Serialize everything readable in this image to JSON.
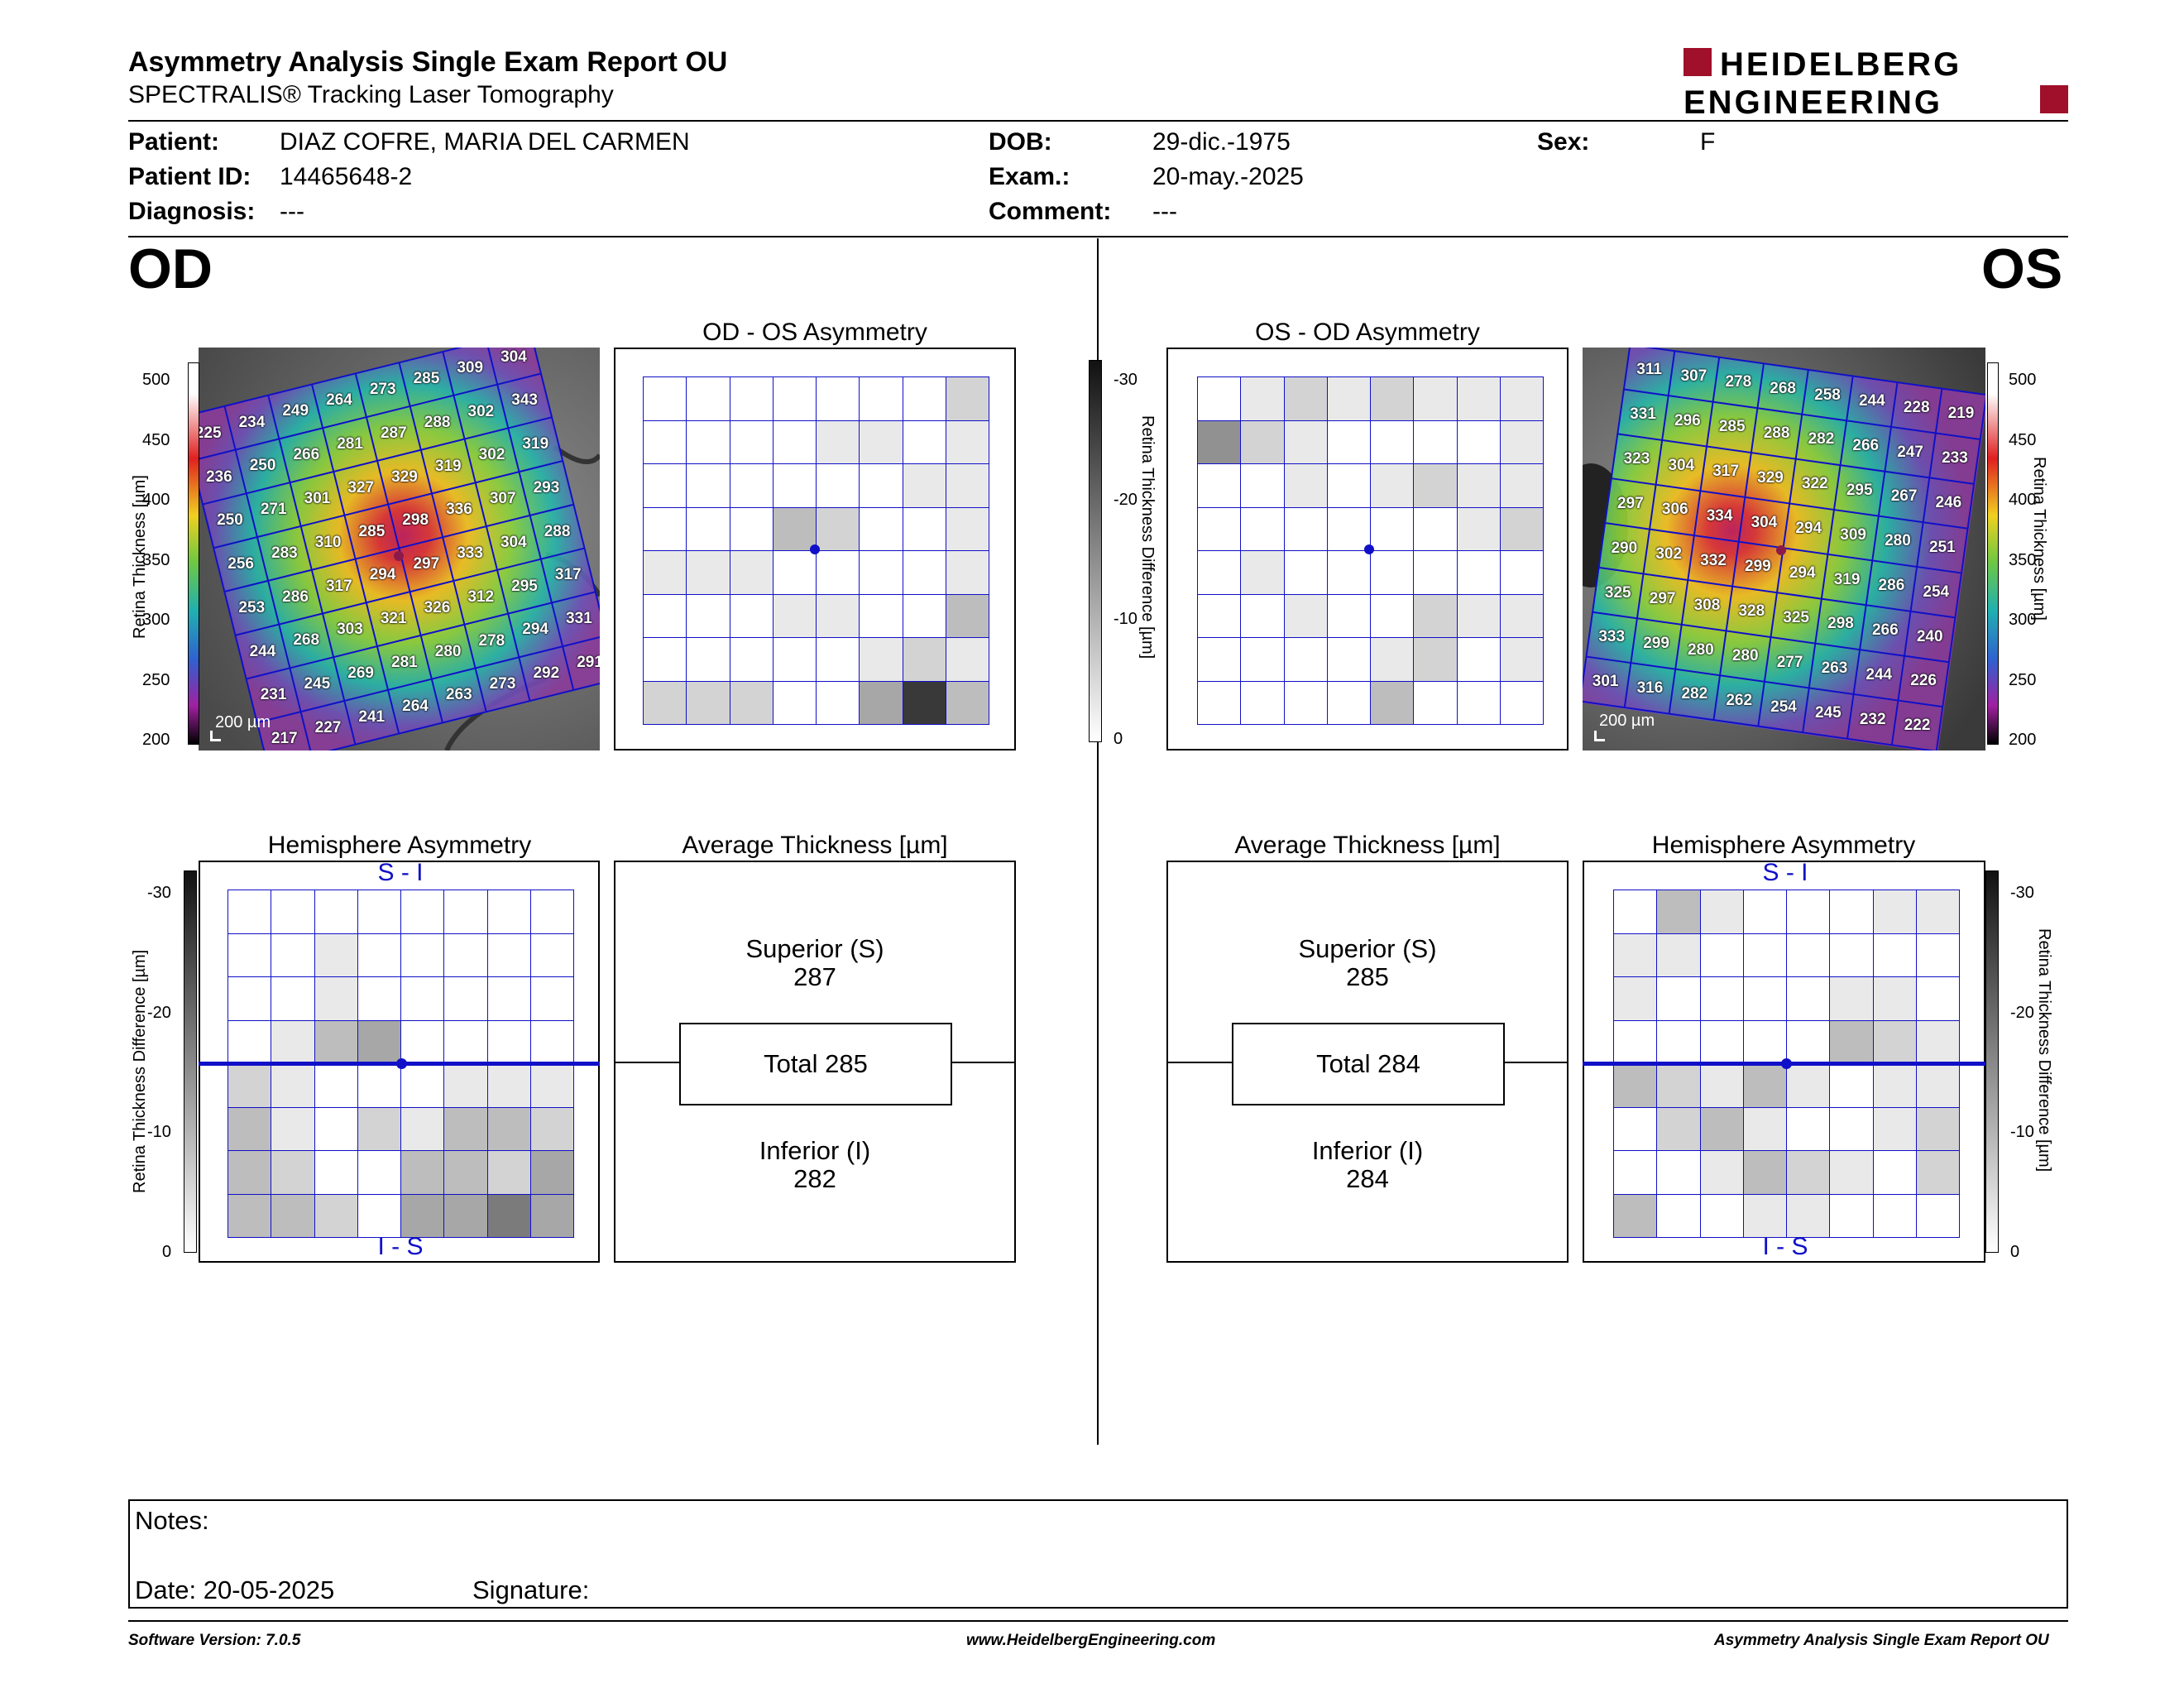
{
  "header": {
    "title": "Asymmetry Analysis Single Exam Report OU",
    "subtitle": "SPECTRALIS® Tracking Laser Tomography",
    "logo_line1": "HEIDELBERG",
    "logo_line2": "ENGINEERING"
  },
  "patient": {
    "patient_label": "Patient:",
    "patient_value": "DIAZ COFRE, MARIA DEL CARMEN",
    "dob_label": "DOB:",
    "dob_value": "29-dic.-1975",
    "sex_label": "Sex:",
    "sex_value": "F",
    "id_label": "Patient ID:",
    "id_value": "14465648-2",
    "exam_label": "Exam.:",
    "exam_value": "20-may.-2025",
    "diag_label": "Diagnosis:",
    "diag_value": "---",
    "comment_label": "Comment:",
    "comment_value": "---"
  },
  "od": {
    "eye_label": "OD",
    "asym_title": "OD - OS Asymmetry",
    "hemi_title": "Hemisphere Asymmetry",
    "avg_title": "Average Thickness [µm]",
    "superior_label": "Superior (S)",
    "superior_value": "287",
    "total_label": "Total 285",
    "inferior_label": "Inferior (I)",
    "inferior_value": "282",
    "scale_bar": "200 µm",
    "thickness_grid": [
      [
        "225",
        "234",
        "249",
        "264",
        "273",
        "285",
        "309",
        "304"
      ],
      [
        "236",
        "250",
        "266",
        "281",
        "287",
        "288",
        "302",
        "343"
      ],
      [
        "250",
        "271",
        "301",
        "327",
        "329",
        "319",
        "302",
        "319"
      ],
      [
        "256",
        "283",
        "310",
        "285",
        "298",
        "336",
        "307",
        "293"
      ],
      [
        "253",
        "286",
        "317",
        "294",
        "297",
        "333",
        "304",
        "288"
      ],
      [
        "244",
        "268",
        "303",
        "321",
        "326",
        "312",
        "295",
        "317"
      ],
      [
        "231",
        "245",
        "269",
        "281",
        "280",
        "278",
        "294",
        "331"
      ],
      [
        "217",
        "227",
        "241",
        "264",
        "263",
        "273",
        "292",
        "291"
      ]
    ],
    "asym_grid": [
      [
        0,
        0,
        0,
        0,
        0,
        0,
        0,
        2
      ],
      [
        0,
        0,
        0,
        0,
        1,
        1,
        0,
        1
      ],
      [
        0,
        0,
        0,
        0,
        0,
        0,
        1,
        1
      ],
      [
        0,
        0,
        0,
        3,
        2,
        0,
        0,
        1
      ],
      [
        1,
        1,
        1,
        0,
        0,
        0,
        0,
        1
      ],
      [
        0,
        0,
        0,
        1,
        1,
        0,
        0,
        3
      ],
      [
        0,
        0,
        0,
        0,
        0,
        1,
        2,
        1
      ],
      [
        2,
        2,
        2,
        0,
        0,
        4,
        9,
        3
      ]
    ],
    "hemi_grid": [
      [
        0,
        0,
        0,
        0,
        0,
        0,
        0,
        0
      ],
      [
        0,
        0,
        1,
        0,
        0,
        0,
        0,
        0
      ],
      [
        0,
        0,
        1,
        0,
        0,
        0,
        0,
        0
      ],
      [
        0,
        1,
        3,
        4,
        0,
        0,
        0,
        0
      ],
      [
        2,
        1,
        0,
        0,
        0,
        1,
        1,
        1
      ],
      [
        3,
        1,
        0,
        2,
        1,
        3,
        3,
        2
      ],
      [
        3,
        2,
        0,
        0,
        3,
        3,
        2,
        4
      ],
      [
        3,
        3,
        2,
        0,
        4,
        4,
        6,
        4
      ]
    ]
  },
  "os": {
    "eye_label": "OS",
    "asym_title": "OS - OD Asymmetry",
    "hemi_title": "Hemisphere Asymmetry",
    "avg_title": "Average Thickness [µm]",
    "superior_label": "Superior (S)",
    "superior_value": "285",
    "total_label": "Total 284",
    "inferior_label": "Inferior (I)",
    "inferior_value": "284",
    "scale_bar": "200 µm",
    "thickness_grid": [
      [
        "311",
        "307",
        "278",
        "268",
        "258",
        "244",
        "228",
        "219"
      ],
      [
        "331",
        "296",
        "285",
        "288",
        "282",
        "266",
        "247",
        "233"
      ],
      [
        "323",
        "304",
        "317",
        "329",
        "322",
        "295",
        "267",
        "246"
      ],
      [
        "297",
        "306",
        "334",
        "304",
        "294",
        "309",
        "280",
        "251"
      ],
      [
        "290",
        "302",
        "332",
        "299",
        "294",
        "319",
        "286",
        "254"
      ],
      [
        "325",
        "297",
        "308",
        "328",
        "325",
        "298",
        "266",
        "240"
      ],
      [
        "333",
        "299",
        "280",
        "280",
        "277",
        "263",
        "244",
        "226"
      ],
      [
        "301",
        "316",
        "282",
        "262",
        "254",
        "245",
        "232",
        "222"
      ]
    ],
    "asym_grid": [
      [
        0,
        1,
        2,
        1,
        2,
        1,
        1,
        1
      ],
      [
        5,
        2,
        1,
        0,
        0,
        0,
        0,
        1
      ],
      [
        0,
        0,
        1,
        0,
        1,
        2,
        1,
        1
      ],
      [
        0,
        0,
        0,
        0,
        0,
        0,
        1,
        2
      ],
      [
        0,
        1,
        0,
        0,
        0,
        0,
        0,
        0
      ],
      [
        0,
        0,
        1,
        0,
        0,
        2,
        1,
        1
      ],
      [
        0,
        0,
        0,
        0,
        1,
        2,
        0,
        1
      ],
      [
        0,
        0,
        0,
        0,
        3,
        0,
        0,
        0
      ]
    ],
    "hemi_grid": [
      [
        0,
        3,
        1,
        0,
        0,
        0,
        1,
        1
      ],
      [
        1,
        1,
        0,
        0,
        0,
        0,
        0,
        0
      ],
      [
        1,
        0,
        0,
        0,
        0,
        1,
        1,
        0
      ],
      [
        0,
        0,
        0,
        0,
        0,
        3,
        2,
        1
      ],
      [
        3,
        2,
        1,
        3,
        1,
        0,
        1,
        1
      ],
      [
        0,
        2,
        3,
        1,
        0,
        0,
        1,
        2
      ],
      [
        0,
        0,
        1,
        3,
        2,
        1,
        0,
        2
      ],
      [
        3,
        0,
        0,
        1,
        1,
        0,
        0,
        0
      ]
    ]
  },
  "thickness_scale": {
    "label": "Retina Thickness [µm]",
    "ticks": [
      "500",
      "450",
      "400",
      "350",
      "300",
      "250",
      "200"
    ]
  },
  "diff_scale": {
    "label": "Retina Thickness Difference [µm]",
    "ticks": [
      "-30",
      "-20",
      "-10",
      "0"
    ]
  },
  "hemi_top_label": "S - I",
  "hemi_bottom_label": "I - S",
  "notes": {
    "notes_label": "Notes:",
    "date_label": "Date: 20-05-2025",
    "signature_label": "Signature:"
  },
  "footer": {
    "software": "Software Version: 7.0.5",
    "website": "www.HeidelbergEngineering.com",
    "report": "Asymmetry Analysis Single Exam Report OU"
  },
  "colors": {
    "grid_blue": "#1010c8",
    "logo_red": "#a0102a"
  }
}
